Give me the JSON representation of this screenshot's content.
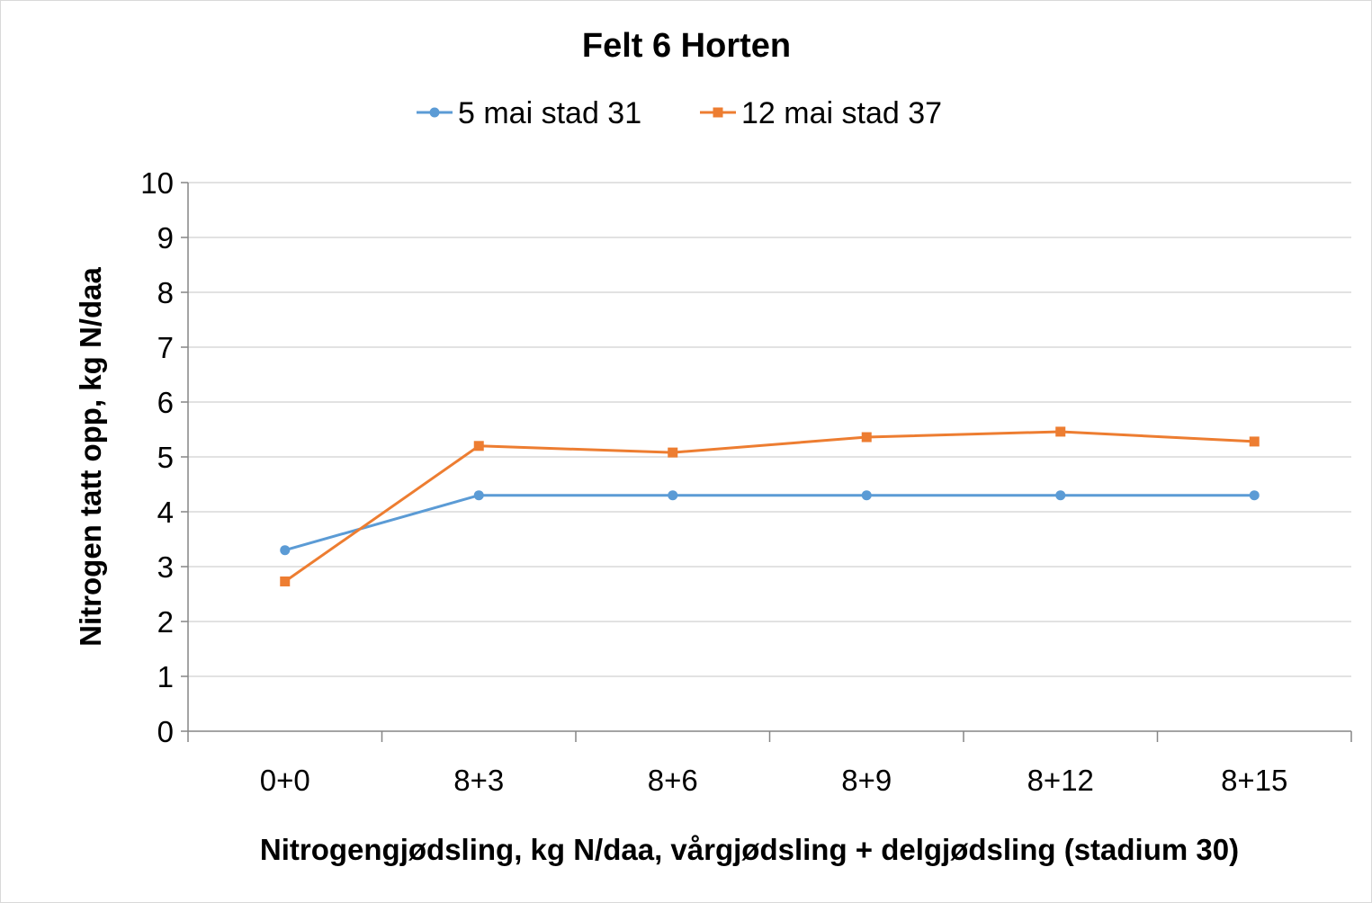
{
  "chart_data": {
    "type": "line",
    "title": "Felt 6 Horten",
    "xlabel": "Nitrogengjødsling, kg N/daa, vårgjødsling + delgjødsling (stadium 30)",
    "ylabel": "Nitrogen tatt opp, kg N/daa",
    "categories": [
      "0+0",
      "8+3",
      "8+6",
      "8+9",
      "8+12",
      "8+15"
    ],
    "ylim": [
      0,
      10
    ],
    "yticks": [
      "0",
      "1",
      "2",
      "3",
      "4",
      "5",
      "6",
      "7",
      "8",
      "9",
      "10"
    ],
    "grid": true,
    "legend": "top-center",
    "series": [
      {
        "name": "5 mai stad 31",
        "color": "#5b9bd5",
        "marker": "circle",
        "values": [
          3.3,
          4.3,
          4.3,
          4.3,
          4.3,
          4.3
        ]
      },
      {
        "name": "12 mai stad 37",
        "color": "#ed7d31",
        "marker": "square",
        "values": [
          2.73,
          5.2,
          5.08,
          5.36,
          5.46,
          5.28
        ]
      }
    ]
  }
}
